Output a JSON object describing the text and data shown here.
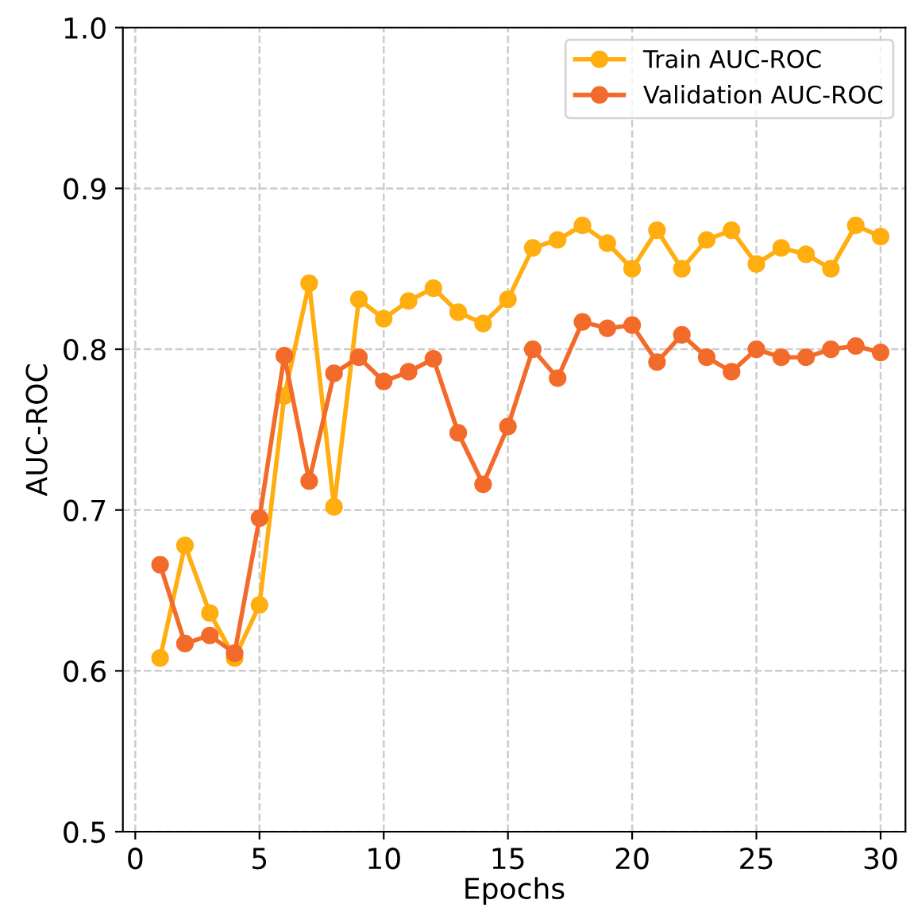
{
  "chart_data": {
    "type": "line",
    "xlabel": "Epochs",
    "ylabel": "AUC-ROC",
    "x": [
      1,
      2,
      3,
      4,
      5,
      6,
      7,
      8,
      9,
      10,
      11,
      12,
      13,
      14,
      15,
      16,
      17,
      18,
      19,
      20,
      21,
      22,
      23,
      24,
      25,
      26,
      27,
      28,
      29,
      30
    ],
    "series": [
      {
        "name": "Train AUC-ROC",
        "color": "#ffad0f",
        "values": [
          0.608,
          0.678,
          0.636,
          0.608,
          0.641,
          0.771,
          0.841,
          0.702,
          0.831,
          0.819,
          0.83,
          0.838,
          0.823,
          0.816,
          0.831,
          0.863,
          0.868,
          0.877,
          0.866,
          0.85,
          0.874,
          0.85,
          0.868,
          0.874,
          0.853,
          0.863,
          0.859,
          0.85,
          0.877,
          0.87
        ]
      },
      {
        "name": "Validation AUC-ROC",
        "color": "#f26b2a",
        "values": [
          0.666,
          0.617,
          0.622,
          0.611,
          0.695,
          0.796,
          0.718,
          0.785,
          0.795,
          0.78,
          0.786,
          0.794,
          0.748,
          0.716,
          0.752,
          0.8,
          0.782,
          0.817,
          0.813,
          0.815,
          0.792,
          0.809,
          0.795,
          0.786,
          0.8,
          0.795,
          0.795,
          0.8,
          0.802,
          0.798
        ]
      }
    ],
    "xlim": [
      -0.5,
      31
    ],
    "xticks": [
      0,
      5,
      10,
      15,
      20,
      25,
      30
    ],
    "ylim": [
      0.5,
      1.0
    ],
    "yticks": [
      {
        "value": 0.5,
        "label": "0.5"
      },
      {
        "value": 0.6,
        "label": "0.6"
      },
      {
        "value": 0.7,
        "label": "0.7"
      },
      {
        "value": 0.8,
        "label": "0.8"
      },
      {
        "value": 0.9,
        "label": "0.9"
      },
      {
        "value": 1.0,
        "label": "1.0"
      }
    ],
    "grid": true,
    "legend": "top right",
    "marker": "circle",
    "line_style": "solid"
  }
}
